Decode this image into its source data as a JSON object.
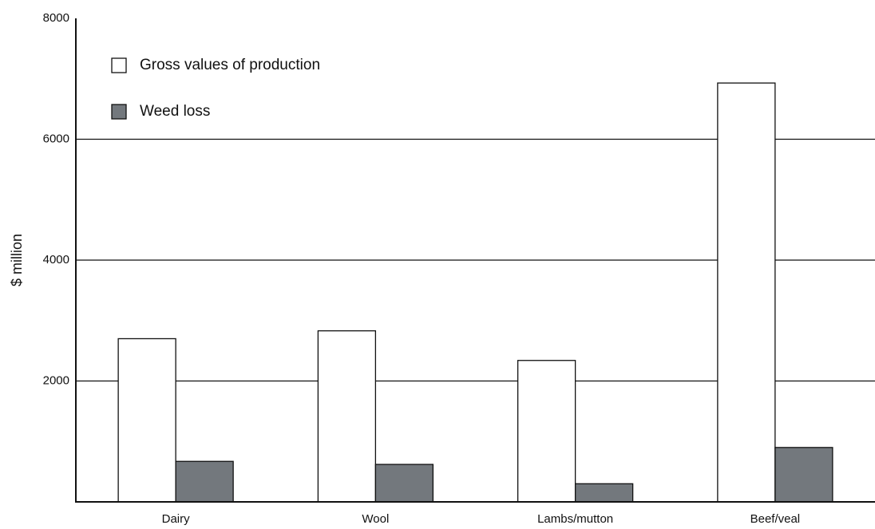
{
  "chart_data": {
    "type": "bar",
    "y_label": "$ million",
    "categories": [
      "Dairy",
      "Wool",
      "Lambs/mutton",
      "Beef/veal"
    ],
    "series": [
      {
        "name": "Gross values of production",
        "color": "#ffffff",
        "values": [
          2700,
          2830,
          2340,
          6930
        ]
      },
      {
        "name": "Weed loss",
        "color": "#73787d",
        "values": [
          670,
          620,
          300,
          900
        ]
      }
    ],
    "ylim": [
      0,
      8000
    ],
    "yticks": [
      2000,
      4000,
      6000,
      8000
    ],
    "grid": true,
    "legend": "top-left"
  }
}
